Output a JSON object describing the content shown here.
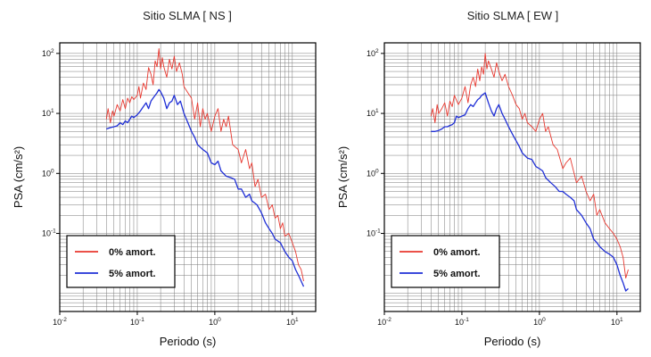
{
  "chart_data": [
    {
      "type": "line",
      "title": "Sitio SLMA [ NS ]",
      "xlabel": "Periodo (s)",
      "ylabel": "PSA (cm/s²)",
      "x_scale": "log",
      "y_scale": "log",
      "xlim": [
        0.01,
        20
      ],
      "ylim": [
        0.005,
        150
      ],
      "grid": true,
      "legend_position": "bottom-left",
      "xticks": [
        {
          "base": "10",
          "exp": "-2",
          "value": 0.01
        },
        {
          "base": "10",
          "exp": "-1",
          "value": 0.1
        },
        {
          "base": "10",
          "exp": "0",
          "value": 1
        },
        {
          "base": "10",
          "exp": "1",
          "value": 10
        }
      ],
      "yticks": [
        {
          "base": "10",
          "exp": "-1",
          "value": 0.1
        },
        {
          "base": "10",
          "exp": "0",
          "value": 1
        },
        {
          "base": "10",
          "exp": "1",
          "value": 10
        },
        {
          "base": "10",
          "exp": "2",
          "value": 100
        }
      ],
      "series": [
        {
          "name": "0% amort.",
          "color": "#e8382f",
          "x": [
            0.04,
            0.042,
            0.045,
            0.048,
            0.05,
            0.055,
            0.06,
            0.065,
            0.07,
            0.075,
            0.08,
            0.085,
            0.09,
            0.1,
            0.105,
            0.11,
            0.12,
            0.13,
            0.14,
            0.15,
            0.16,
            0.17,
            0.18,
            0.19,
            0.2,
            0.21,
            0.22,
            0.24,
            0.26,
            0.28,
            0.3,
            0.32,
            0.35,
            0.38,
            0.4,
            0.45,
            0.5,
            0.55,
            0.6,
            0.65,
            0.7,
            0.75,
            0.8,
            0.9,
            1.0,
            1.1,
            1.2,
            1.3,
            1.4,
            1.5,
            1.7,
            2.0,
            2.2,
            2.5,
            2.8,
            3.0,
            3.3,
            3.6,
            4.0,
            4.5,
            5.0,
            5.5,
            6.0,
            6.5,
            7.0,
            7.5,
            8.0,
            9.0,
            10.0,
            11.0,
            12.0,
            13.0,
            14.0
          ],
          "y": [
            8,
            12,
            7,
            11,
            9,
            14,
            11,
            17,
            12,
            18,
            15,
            19,
            17,
            20,
            28,
            18,
            32,
            25,
            58,
            45,
            30,
            75,
            60,
            120,
            55,
            85,
            60,
            40,
            80,
            55,
            90,
            50,
            70,
            45,
            28,
            22,
            18,
            8,
            15,
            6,
            12,
            8,
            10,
            5,
            9,
            12,
            5,
            8,
            6,
            9,
            3,
            2.5,
            1.5,
            2.5,
            1.2,
            1.5,
            0.6,
            0.8,
            0.4,
            0.45,
            0.25,
            0.3,
            0.18,
            0.2,
            0.12,
            0.15,
            0.09,
            0.1,
            0.07,
            0.05,
            0.03,
            0.025,
            0.016
          ]
        },
        {
          "name": "5% amort.",
          "color": "#1f2fd6",
          "x": [
            0.04,
            0.045,
            0.05,
            0.055,
            0.06,
            0.065,
            0.07,
            0.075,
            0.08,
            0.085,
            0.09,
            0.1,
            0.11,
            0.12,
            0.13,
            0.14,
            0.15,
            0.16,
            0.17,
            0.18,
            0.19,
            0.2,
            0.22,
            0.24,
            0.26,
            0.28,
            0.3,
            0.33,
            0.36,
            0.4,
            0.45,
            0.5,
            0.55,
            0.6,
            0.7,
            0.8,
            0.9,
            1.0,
            1.1,
            1.2,
            1.4,
            1.6,
            1.8,
            2.0,
            2.2,
            2.5,
            2.8,
            3.0,
            3.5,
            4.0,
            4.5,
            5.0,
            5.5,
            6.0,
            7.0,
            8.0,
            9.0,
            10.0,
            11.0,
            12.0,
            13.0,
            14.0
          ],
          "y": [
            5.5,
            5.8,
            6,
            6.2,
            7,
            6.5,
            7.5,
            7,
            8,
            9,
            8.5,
            9.5,
            11,
            13,
            15,
            12,
            16,
            18,
            20,
            22,
            25,
            23,
            18,
            12,
            15,
            16,
            20,
            14,
            16,
            10,
            7,
            5,
            4,
            3,
            2.5,
            2.2,
            1.5,
            1.4,
            1.6,
            1.1,
            0.9,
            0.85,
            0.8,
            0.55,
            0.55,
            0.4,
            0.45,
            0.35,
            0.3,
            0.22,
            0.15,
            0.12,
            0.1,
            0.08,
            0.07,
            0.05,
            0.04,
            0.035,
            0.025,
            0.02,
            0.016,
            0.013
          ]
        }
      ]
    },
    {
      "type": "line",
      "title": "Sitio SLMA [ EW ]",
      "xlabel": "Periodo (s)",
      "ylabel": "PSA (cm/s²)",
      "x_scale": "log",
      "y_scale": "log",
      "xlim": [
        0.01,
        20
      ],
      "ylim": [
        0.005,
        150
      ],
      "grid": true,
      "legend_position": "bottom-left",
      "xticks": [
        {
          "base": "10",
          "exp": "-2",
          "value": 0.01
        },
        {
          "base": "10",
          "exp": "-1",
          "value": 0.1
        },
        {
          "base": "10",
          "exp": "0",
          "value": 1
        },
        {
          "base": "10",
          "exp": "1",
          "value": 10
        }
      ],
      "yticks": [
        {
          "base": "10",
          "exp": "-1",
          "value": 0.1
        },
        {
          "base": "10",
          "exp": "0",
          "value": 1
        },
        {
          "base": "10",
          "exp": "1",
          "value": 10
        },
        {
          "base": "10",
          "exp": "2",
          "value": 100
        }
      ],
      "series": [
        {
          "name": "0% amort.",
          "color": "#e8382f",
          "x": [
            0.04,
            0.042,
            0.045,
            0.048,
            0.05,
            0.055,
            0.06,
            0.065,
            0.07,
            0.075,
            0.08,
            0.09,
            0.1,
            0.11,
            0.12,
            0.13,
            0.14,
            0.15,
            0.16,
            0.17,
            0.18,
            0.19,
            0.2,
            0.21,
            0.22,
            0.24,
            0.26,
            0.28,
            0.3,
            0.33,
            0.36,
            0.4,
            0.45,
            0.5,
            0.55,
            0.6,
            0.65,
            0.7,
            0.8,
            0.9,
            1.0,
            1.1,
            1.2,
            1.3,
            1.5,
            1.7,
            2.0,
            2.2,
            2.5,
            2.8,
            3.0,
            3.5,
            4.0,
            4.5,
            5.0,
            5.5,
            6.0,
            7.0,
            8.0,
            9.0,
            10.0,
            11.0,
            12.0,
            13.0,
            14.0
          ],
          "y": [
            9,
            12,
            7,
            14,
            10,
            12,
            15,
            9,
            16,
            13,
            20,
            14,
            18,
            28,
            15,
            30,
            40,
            28,
            55,
            35,
            60,
            45,
            100,
            55,
            75,
            55,
            40,
            70,
            50,
            35,
            45,
            28,
            20,
            14,
            12,
            8,
            10,
            7,
            6,
            5,
            8,
            10,
            5,
            6,
            3,
            2.5,
            1.2,
            1.5,
            1.8,
            1.0,
            0.7,
            0.9,
            0.5,
            0.35,
            0.45,
            0.2,
            0.25,
            0.15,
            0.12,
            0.1,
            0.08,
            0.06,
            0.04,
            0.018,
            0.025
          ]
        },
        {
          "name": "5% amort.",
          "color": "#1f2fd6",
          "x": [
            0.04,
            0.045,
            0.05,
            0.055,
            0.06,
            0.065,
            0.07,
            0.075,
            0.08,
            0.085,
            0.09,
            0.1,
            0.11,
            0.12,
            0.13,
            0.14,
            0.15,
            0.16,
            0.17,
            0.18,
            0.19,
            0.2,
            0.22,
            0.24,
            0.26,
            0.28,
            0.3,
            0.33,
            0.36,
            0.4,
            0.45,
            0.5,
            0.55,
            0.6,
            0.7,
            0.8,
            0.9,
            1.0,
            1.1,
            1.2,
            1.4,
            1.6,
            1.8,
            2.0,
            2.2,
            2.5,
            2.8,
            3.0,
            3.5,
            4.0,
            4.5,
            5.0,
            5.5,
            6.0,
            7.0,
            8.0,
            9.0,
            10.0,
            11.0,
            12.0,
            13.0,
            14.0
          ],
          "y": [
            5,
            5,
            5.2,
            5.5,
            6,
            6,
            6.3,
            6.5,
            7,
            9,
            8.5,
            9,
            9.5,
            12,
            14,
            13,
            15,
            17,
            18,
            20,
            21,
            22,
            15,
            11,
            9,
            12,
            14,
            10,
            8,
            6,
            4.5,
            3.5,
            2.8,
            2.2,
            1.8,
            1.7,
            1.3,
            1.2,
            1.1,
            0.85,
            0.7,
            0.6,
            0.5,
            0.5,
            0.45,
            0.4,
            0.35,
            0.25,
            0.2,
            0.15,
            0.12,
            0.08,
            0.07,
            0.06,
            0.05,
            0.045,
            0.04,
            0.03,
            0.02,
            0.015,
            0.011,
            0.012
          ]
        }
      ]
    }
  ]
}
